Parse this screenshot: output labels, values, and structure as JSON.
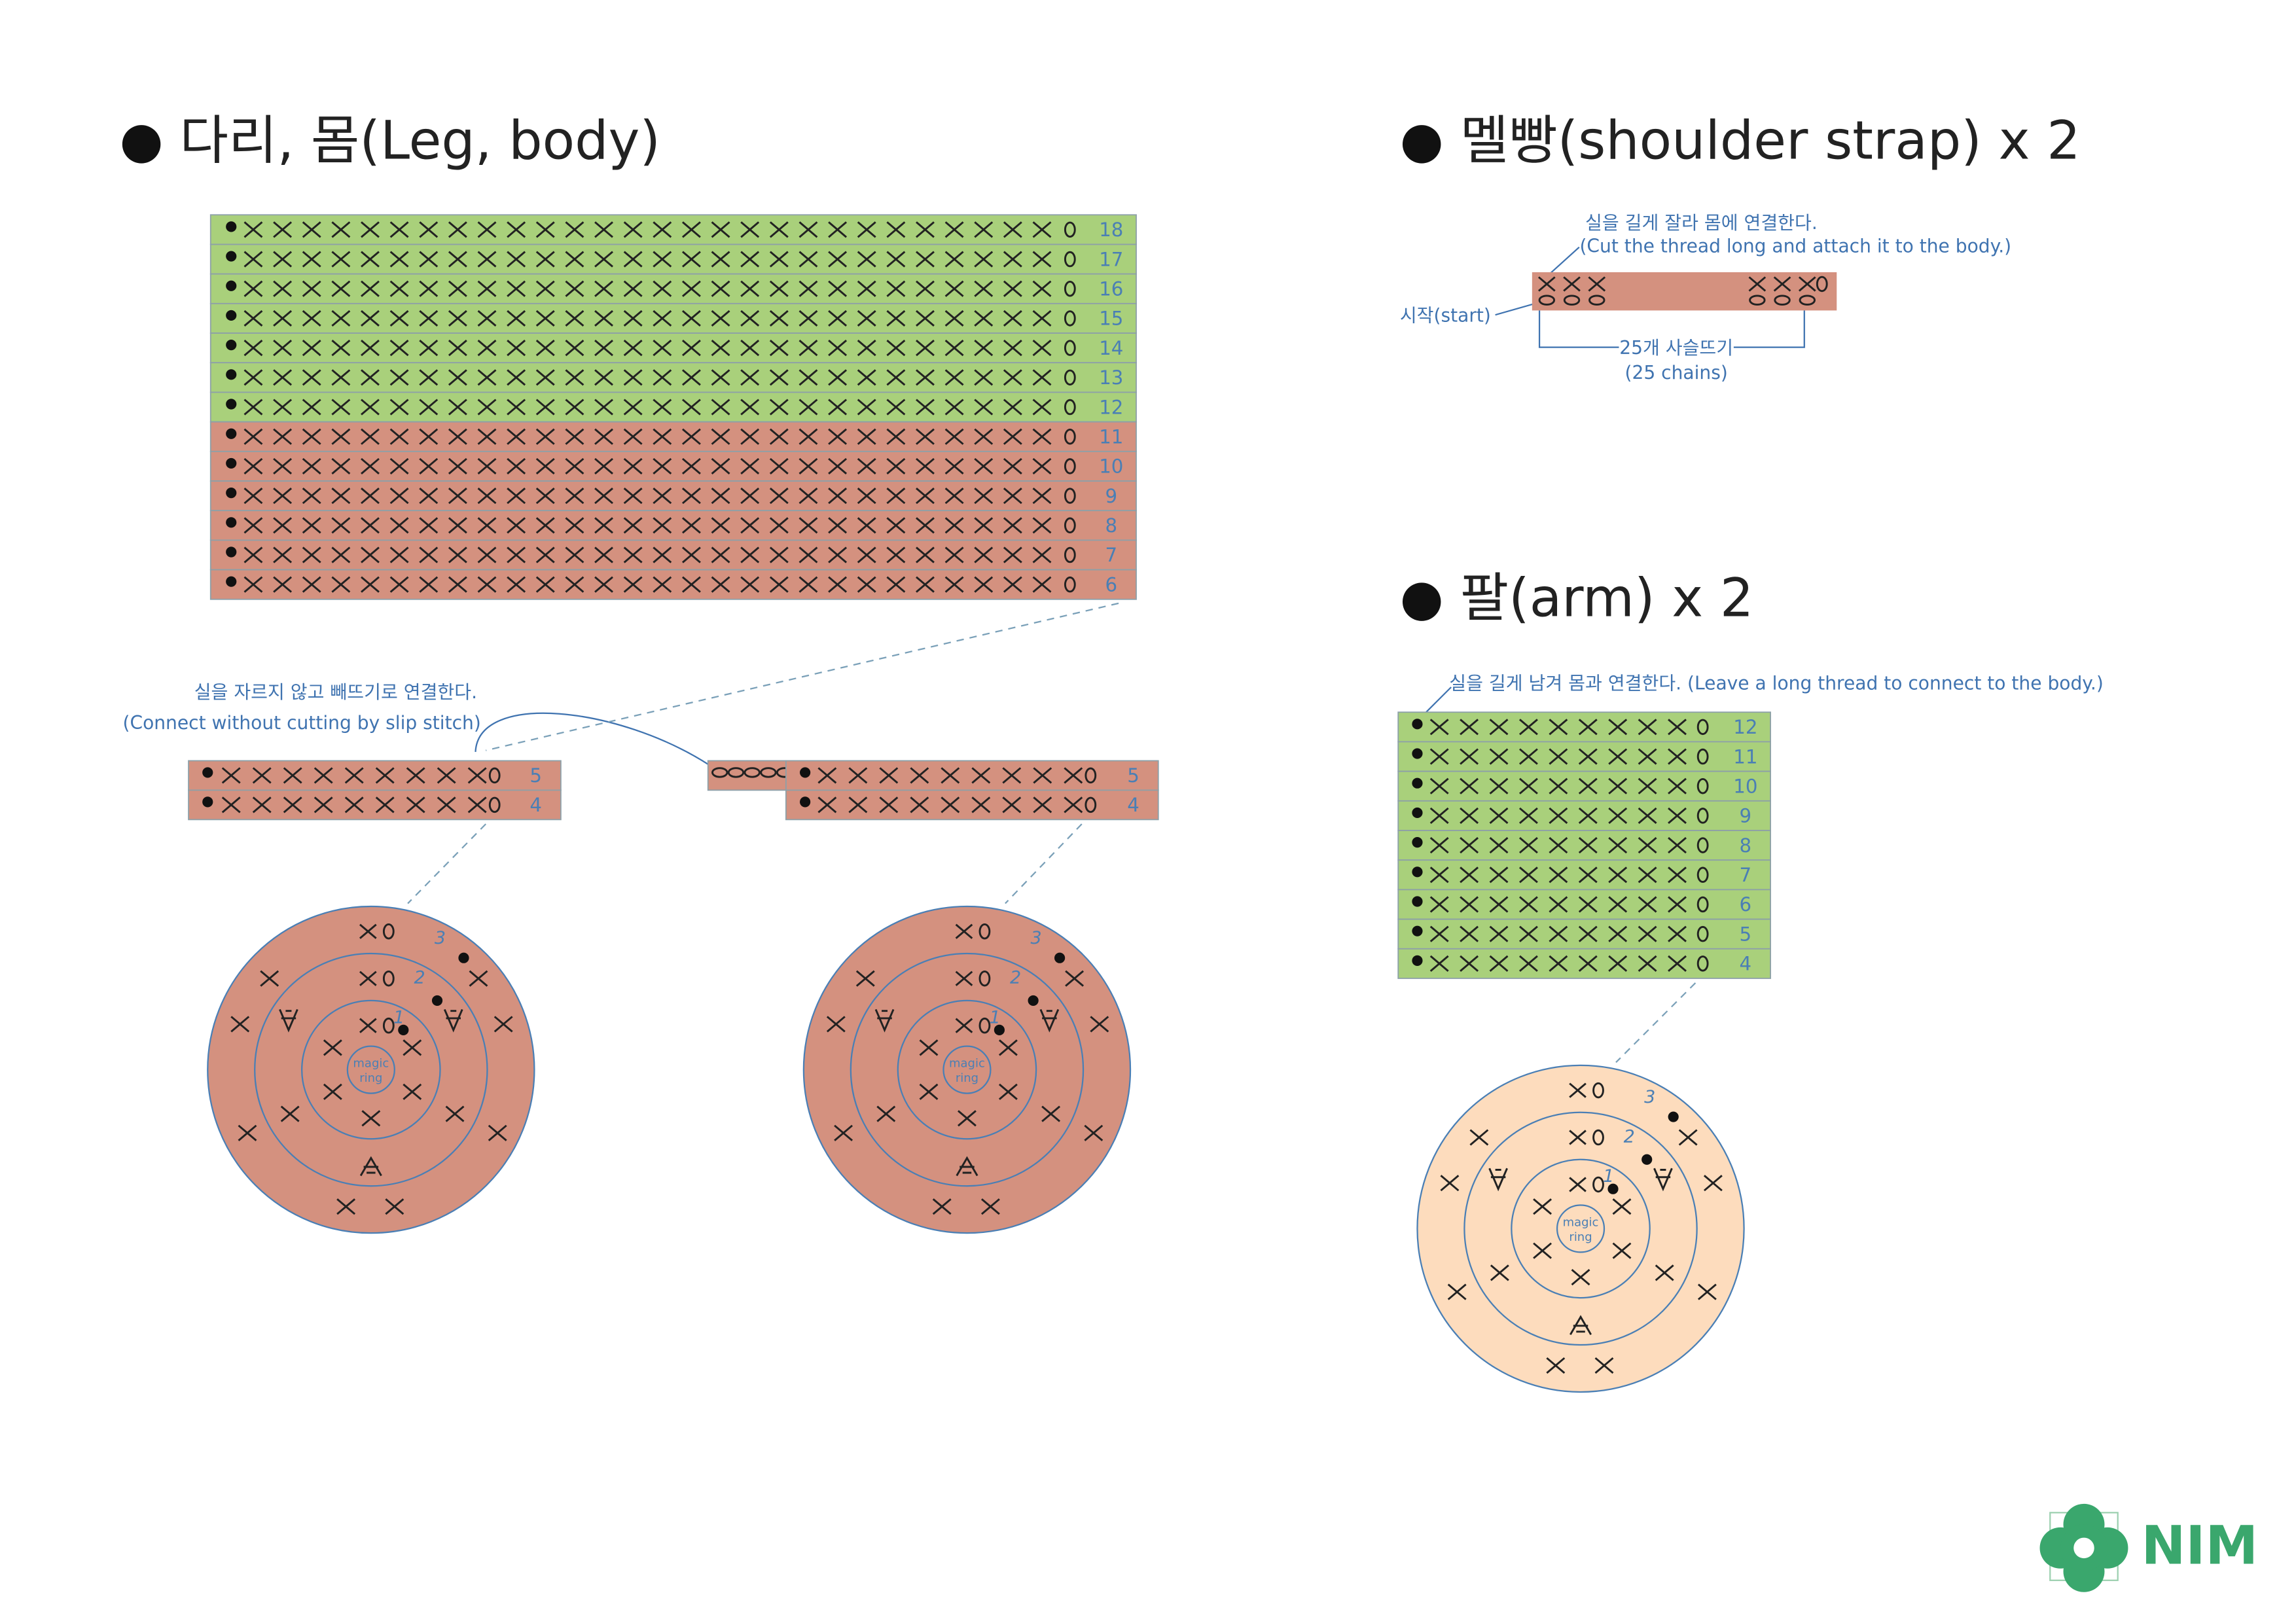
{
  "body": {
    "title": "다리, 몸(Leg, body)",
    "groups": [
      {
        "color": "#a9d07b",
        "rows": [
          18,
          17,
          16,
          15,
          14,
          13,
          12
        ]
      },
      {
        "color": "#d4917f",
        "rows": [
          11,
          10,
          9,
          8,
          7,
          6
        ]
      }
    ]
  },
  "join_note": {
    "korean": "실을 자르지 않고 빼뜨기로 연결한다.",
    "english": "(Connect without cutting by slip stitch)"
  },
  "legs": [
    {
      "color": "#d4917f",
      "rows": [
        5,
        4
      ]
    },
    {
      "color": "#d4917f",
      "rows": [
        5,
        4
      ]
    }
  ],
  "leg_circles": [
    {
      "color": "#d4917f",
      "center_label": [
        "magic",
        "ring"
      ],
      "rounds": [
        1,
        2,
        3
      ]
    },
    {
      "color": "#d4917f",
      "center_label": [
        "magic",
        "ring"
      ],
      "rounds": [
        1,
        2,
        3
      ]
    }
  ],
  "strap": {
    "title": "멜빵(shoulder strap) x 2",
    "note_korean": "실을 길게 잘라 몸에 연결한다.",
    "note_english": "(Cut the thread long and attach it to the body.)",
    "start": "시작(start)",
    "chains_korean": "25개 사슬뜨기",
    "chains_english": "(25 chains)",
    "color": "#d4917f"
  },
  "arm": {
    "title": "팔(arm) x 2",
    "note": "실을 길게 남겨 몸과 연결한다. (Leave a long thread to connect to the body.)",
    "color": "#a9d07b",
    "rows": [
      12,
      11,
      10,
      9,
      8,
      7,
      6,
      5,
      4
    ],
    "circle": {
      "color": "#fddcbd",
      "center_label": [
        "magic",
        "ring"
      ],
      "rounds": [
        1,
        2,
        3
      ]
    }
  },
  "logo": {
    "text": "NIM"
  }
}
